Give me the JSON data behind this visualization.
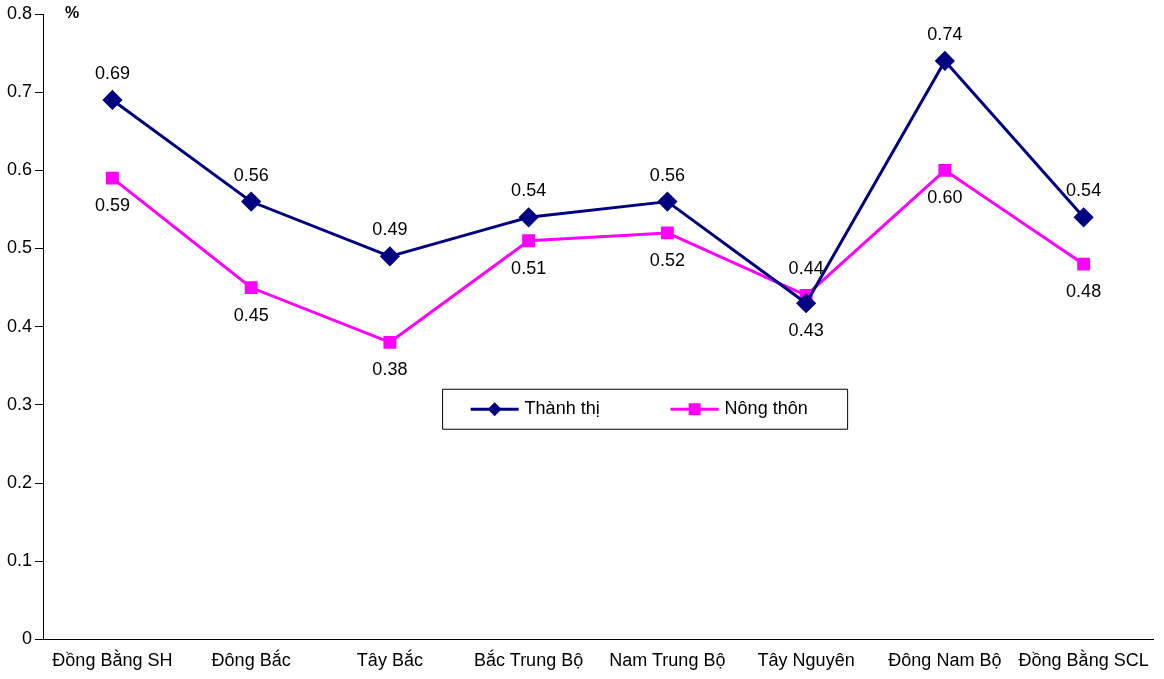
{
  "chart_data": {
    "type": "line",
    "ylabel": "%",
    "categories": [
      "Đồng Bằng SH",
      "Đông Bắc",
      "Tây Bắc",
      "Bắc Trung Bộ",
      "Nam Trung Bộ",
      "Tây Nguyên",
      "Đông Nam Bộ",
      "Đồng Bằng SCL"
    ],
    "series": [
      {
        "name": "Thành thị",
        "color": "#000080",
        "marker": "diamond",
        "values": [
          0.69,
          0.56,
          0.49,
          0.54,
          0.56,
          0.43,
          0.74,
          0.54
        ],
        "value_labels": [
          "0.69",
          "0.56",
          "0.49",
          "0.54",
          "0.56",
          "0.43",
          "0.74",
          "0.54"
        ]
      },
      {
        "name": "Nông thôn",
        "color": "#ff00ff",
        "marker": "square",
        "values": [
          0.59,
          0.45,
          0.38,
          0.51,
          0.52,
          0.44,
          0.6,
          0.48
        ],
        "value_labels": [
          "0.59",
          "0.45",
          "0.38",
          "0.51",
          "0.52",
          "0.44",
          "0.60",
          "0.48"
        ]
      }
    ],
    "ylim": [
      0,
      0.8
    ],
    "yticks": [
      0,
      0.1,
      0.2,
      0.3,
      0.4,
      0.5,
      0.6,
      0.7,
      0.8
    ],
    "grid": false,
    "legend": "center"
  }
}
